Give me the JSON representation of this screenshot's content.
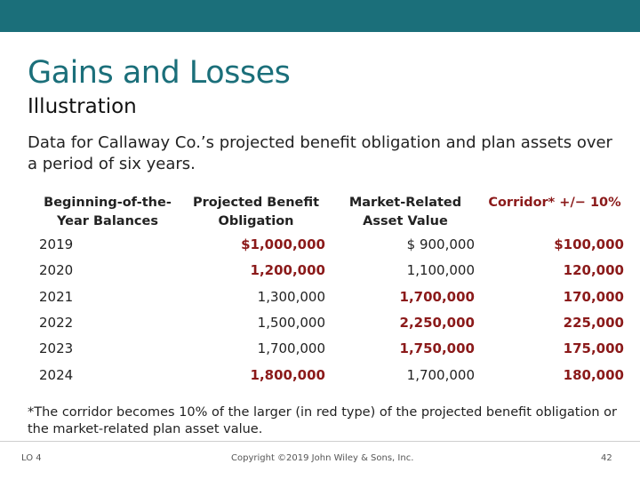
{
  "title": "Gains and Losses",
  "subtitle": "Illustration",
  "intro": "Data for Callaway Co.’s projected benefit obligation and plan assets over a period of six years.",
  "table": {
    "headers": [
      "Beginning-of-the-Year Balances",
      "Projected Benefit Obligation",
      "Market-Related Asset Value",
      "Corridor* +/− 10%"
    ],
    "rows": [
      {
        "year": "2019",
        "pbo": "$1,000,000",
        "asset": "$ 900,000",
        "corridor": "$100,000",
        "pbo_red": true,
        "asset_red": false
      },
      {
        "year": "2020",
        "pbo": "1,200,000",
        "asset": "1,100,000",
        "corridor": "120,000",
        "pbo_red": true,
        "asset_red": false
      },
      {
        "year": "2021",
        "pbo": "1,300,000",
        "asset": "1,700,000",
        "corridor": "170,000",
        "pbo_red": false,
        "asset_red": true
      },
      {
        "year": "2022",
        "pbo": "1,500,000",
        "asset": "2,250,000",
        "corridor": "225,000",
        "pbo_red": false,
        "asset_red": true
      },
      {
        "year": "2023",
        "pbo": "1,700,000",
        "asset": "1,750,000",
        "corridor": "175,000",
        "pbo_red": false,
        "asset_red": true
      },
      {
        "year": "2024",
        "pbo": "1,800,000",
        "asset": "1,700,000",
        "corridor": "180,000",
        "pbo_red": true,
        "asset_red": false
      }
    ]
  },
  "footnote": "*The corridor becomes 10% of the larger (in red type) of the projected benefit obligation or the market-related plan asset value.",
  "footer": {
    "lo": "LO 4",
    "copyright": "Copyright ©2019 John Wiley & Sons, Inc.",
    "page": "42"
  },
  "colors": {
    "accent": "#1b6f7a",
    "highlight": "#8b1a1a"
  }
}
